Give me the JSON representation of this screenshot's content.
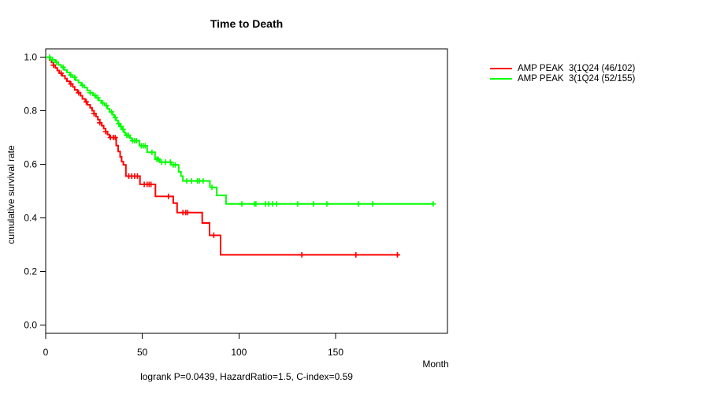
{
  "chart_data": {
    "type": "line",
    "subtype": "kaplan-meier-step-curves",
    "title": "Time to Death",
    "xlabel": "Month",
    "ylabel": "cumulative survival rate",
    "caption": "logrank P=0.0439, HazardRatio=1.5, C-index=0.59",
    "x_ticks": [
      0,
      50,
      100,
      150
    ],
    "y_ticks": [
      0.0,
      0.2,
      0.4,
      0.6,
      0.8,
      1.0
    ],
    "xlim": [
      0,
      208
    ],
    "ylim": [
      0,
      1.0
    ],
    "grid": false,
    "legend_position": "right-outside",
    "axis_color": "#000000",
    "series": [
      {
        "name": "AMP PEAK  3(1Q24 (46/102)",
        "color": "#ff0000",
        "end_month": 183,
        "steps": [
          [
            0,
            1.0
          ],
          [
            2,
            0.99
          ],
          [
            3,
            0.98
          ],
          [
            4,
            0.97
          ],
          [
            5,
            0.96
          ],
          [
            6,
            0.95
          ],
          [
            7,
            0.94
          ],
          [
            8.5,
            0.93
          ],
          [
            10,
            0.92
          ],
          [
            11,
            0.91
          ],
          [
            12.5,
            0.9
          ],
          [
            14,
            0.889
          ],
          [
            15,
            0.878
          ],
          [
            16.5,
            0.867
          ],
          [
            18,
            0.856
          ],
          [
            19,
            0.844
          ],
          [
            20.5,
            0.833
          ],
          [
            21.5,
            0.822
          ],
          [
            23,
            0.811
          ],
          [
            24,
            0.8
          ],
          [
            25,
            0.789
          ],
          [
            26,
            0.778
          ],
          [
            27,
            0.767
          ],
          [
            28,
            0.755
          ],
          [
            29,
            0.744
          ],
          [
            30,
            0.733
          ],
          [
            31,
            0.722
          ],
          [
            32,
            0.711
          ],
          [
            33,
            0.7
          ],
          [
            36.5,
            0.67
          ],
          [
            37.5,
            0.648
          ],
          [
            38.5,
            0.628
          ],
          [
            39.3,
            0.61
          ],
          [
            40.2,
            0.598
          ],
          [
            41.5,
            0.556
          ],
          [
            48.8,
            0.525
          ],
          [
            56.8,
            0.48
          ],
          [
            66,
            0.455
          ],
          [
            68,
            0.42
          ],
          [
            81,
            0.381
          ],
          [
            84.8,
            0.335
          ],
          [
            90.5,
            0.262
          ]
        ],
        "censors": [
          4,
          8,
          13,
          17,
          21,
          25,
          28,
          31,
          33.5,
          35,
          36,
          43,
          44.5,
          46,
          47.5,
          51,
          52.5,
          53.5,
          54.5,
          63.5,
          71,
          72.5,
          73.5,
          87,
          132.5,
          160.5,
          182
        ]
      },
      {
        "name": "AMP PEAK  3(1Q24 (52/155)",
        "color": "#00ff00",
        "end_month": 201,
        "steps": [
          [
            0,
            1.0
          ],
          [
            2.5,
            0.99
          ],
          [
            5,
            0.981
          ],
          [
            6.5,
            0.971
          ],
          [
            8,
            0.962
          ],
          [
            9.5,
            0.952
          ],
          [
            11,
            0.943
          ],
          [
            12.5,
            0.933
          ],
          [
            14,
            0.924
          ],
          [
            15.5,
            0.914
          ],
          [
            17,
            0.905
          ],
          [
            18.5,
            0.895
          ],
          [
            20,
            0.886
          ],
          [
            21.5,
            0.876
          ],
          [
            23,
            0.867
          ],
          [
            24.5,
            0.857
          ],
          [
            26,
            0.848
          ],
          [
            27.5,
            0.838
          ],
          [
            29,
            0.829
          ],
          [
            30.5,
            0.819
          ],
          [
            32,
            0.807
          ],
          [
            33,
            0.796
          ],
          [
            34.5,
            0.785
          ],
          [
            35.5,
            0.774
          ],
          [
            36.5,
            0.763
          ],
          [
            37.5,
            0.752
          ],
          [
            38.5,
            0.741
          ],
          [
            39.5,
            0.73
          ],
          [
            40.5,
            0.719
          ],
          [
            41.2,
            0.708
          ],
          [
            43.6,
            0.698
          ],
          [
            44.6,
            0.688
          ],
          [
            48.5,
            0.669
          ],
          [
            52.5,
            0.645
          ],
          [
            56.6,
            0.619
          ],
          [
            59,
            0.608
          ],
          [
            64.8,
            0.598
          ],
          [
            68.8,
            0.572
          ],
          [
            70,
            0.556
          ],
          [
            71,
            0.538
          ],
          [
            85,
            0.514
          ],
          [
            88.5,
            0.484
          ],
          [
            93.3,
            0.452
          ]
        ],
        "censors": [
          2,
          3.5,
          5.5,
          9,
          13,
          15,
          19,
          23,
          25.5,
          27,
          29.5,
          31.5,
          34,
          36,
          37.8,
          39,
          40,
          42,
          42.8,
          45,
          46,
          47,
          49.5,
          50.5,
          51.5,
          55,
          57.5,
          58.2,
          60,
          62,
          64.5,
          66,
          67,
          73,
          75.5,
          78.5,
          79.5,
          81.5,
          86,
          101.5,
          108,
          108.8,
          113.7,
          115.4,
          117.4,
          119.4,
          130.4,
          138.6,
          145.5,
          161.8,
          169.2,
          200.5
        ]
      }
    ]
  }
}
